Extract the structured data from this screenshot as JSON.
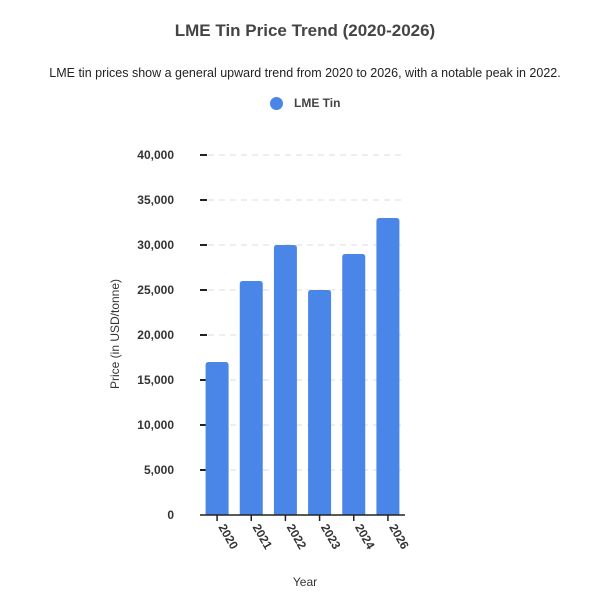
{
  "chart_data": {
    "type": "bar",
    "title": "LME Tin Price Trend (2020-2026)",
    "subtitle": "LME tin prices show a general upward trend from 2020 to 2026, with a notable peak in 2022.",
    "xlabel": "Year",
    "ylabel": "Price (in USD/tonne)",
    "categories": [
      "2020",
      "2021",
      "2022",
      "2023",
      "2024",
      "2026"
    ],
    "series": [
      {
        "name": "LME Tin",
        "color": "#4a86e8",
        "values": [
          17000,
          26000,
          30000,
          25000,
          29000,
          33000
        ]
      }
    ],
    "ylim": [
      0,
      40000
    ],
    "yticks": [
      0,
      5000,
      10000,
      15000,
      20000,
      25000,
      30000,
      35000,
      40000
    ],
    "ytick_labels": [
      "0",
      "5,000",
      "10,000",
      "15,000",
      "20,000",
      "25,000",
      "30,000",
      "35,000",
      "40,000"
    ],
    "grid": true,
    "legend_position": "top-center"
  }
}
